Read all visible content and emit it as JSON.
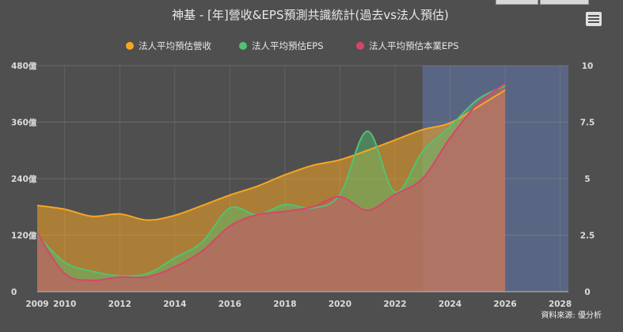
{
  "chart_data": {
    "type": "area",
    "title": "神基 - [年]營收&EPS預測共識統計(過去vs法人預估)",
    "credit": "資料來源: 優分析",
    "x_ticks": [
      "2009",
      "2010",
      "2012",
      "2014",
      "2016",
      "2018",
      "2020",
      "2022",
      "2024",
      "2026",
      "2028"
    ],
    "y_left_ticks": [
      "0",
      "120億",
      "240億",
      "360億",
      "480億"
    ],
    "y_right_ticks": [
      "0",
      "2.5",
      "5",
      "7.5",
      "10"
    ],
    "y_left_range": [
      0,
      480
    ],
    "y_right_range": [
      0,
      10
    ],
    "x_range": [
      2009,
      2028.3
    ],
    "forecast_band": [
      2023,
      2028.3
    ],
    "legend_position": "top-center",
    "series": [
      {
        "name": "法人平均預估營收",
        "axis": "left",
        "color": "#f5a623",
        "x": [
          2009,
          2010,
          2011,
          2012,
          2013,
          2014,
          2015,
          2016,
          2017,
          2018,
          2019,
          2020,
          2021,
          2022,
          2023,
          2024,
          2025,
          2026
        ],
        "y": [
          183,
          175,
          160,
          165,
          152,
          162,
          183,
          205,
          224,
          248,
          268,
          280,
          300,
          322,
          344,
          358,
          392,
          428
        ]
      },
      {
        "name": "法人平均預估EPS",
        "axis": "right",
        "color": "#54c172",
        "x": [
          2009,
          2010,
          2011,
          2012,
          2013,
          2014,
          2015,
          2016,
          2017,
          2018,
          2019,
          2020,
          2021,
          2022,
          2023,
          2024,
          2025,
          2026
        ],
        "y": [
          2.5,
          1.3,
          0.9,
          0.7,
          0.8,
          1.5,
          2.2,
          3.7,
          3.4,
          3.85,
          3.7,
          4.3,
          7.1,
          4.4,
          6.2,
          7.3,
          8.5,
          9.1
        ]
      },
      {
        "name": "法人平均預估本業EPS",
        "axis": "right",
        "color": "#d7456b",
        "x": [
          2009,
          2010,
          2011,
          2012,
          2013,
          2014,
          2015,
          2016,
          2017,
          2018,
          2019,
          2020,
          2021,
          2022,
          2023,
          2024,
          2025,
          2026
        ],
        "y": [
          2.6,
          0.8,
          0.5,
          0.65,
          0.65,
          1.1,
          1.8,
          2.9,
          3.4,
          3.55,
          3.75,
          4.2,
          3.6,
          4.3,
          5.0,
          6.8,
          8.3,
          9.2
        ]
      }
    ]
  },
  "menu_icon": "hamburger-menu-icon"
}
